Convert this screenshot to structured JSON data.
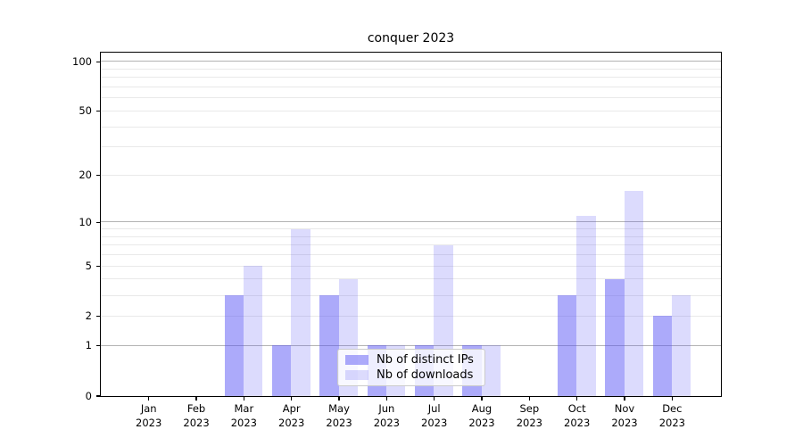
{
  "title": "conquer 2023",
  "chart_data": {
    "type": "bar",
    "title": "conquer 2023",
    "scale": "log10(value+1)",
    "grid": true,
    "categories": [
      {
        "month": "Jan",
        "year": "2023"
      },
      {
        "month": "Feb",
        "year": "2023"
      },
      {
        "month": "Mar",
        "year": "2023"
      },
      {
        "month": "Apr",
        "year": "2023"
      },
      {
        "month": "May",
        "year": "2023"
      },
      {
        "month": "Jun",
        "year": "2023"
      },
      {
        "month": "Jul",
        "year": "2023"
      },
      {
        "month": "Aug",
        "year": "2023"
      },
      {
        "month": "Sep",
        "year": "2023"
      },
      {
        "month": "Oct",
        "year": "2023"
      },
      {
        "month": "Nov",
        "year": "2023"
      },
      {
        "month": "Dec",
        "year": "2023"
      }
    ],
    "series": [
      {
        "name": "Nb of distinct IPs",
        "values": [
          0,
          0,
          3,
          1,
          3,
          1,
          1,
          1,
          0,
          3,
          4,
          2
        ],
        "base_color": "#5a55f5",
        "alpha": 0.5,
        "rendered_color": "#acaaf9"
      },
      {
        "name": "Nb of downloads",
        "values": [
          0,
          0,
          5,
          9,
          4,
          1,
          7,
          1,
          0,
          11,
          16,
          3
        ],
        "base_color": "#5a55f5",
        "alpha": 0.21,
        "rendered_color": "#dcdaf9"
      }
    ],
    "y_ticks": [
      100,
      50,
      20,
      10,
      5,
      2,
      1,
      0
    ],
    "major_gridlines": [
      1,
      10,
      100
    ],
    "minor_gridlines": [
      2,
      3,
      4,
      5,
      6,
      7,
      8,
      9,
      20,
      30,
      40,
      50,
      60,
      70,
      80,
      90
    ],
    "ylim": [
      0,
      114
    ],
    "legend": {
      "position": "lower center",
      "items": [
        "Nb of distinct IPs",
        "Nb of downloads"
      ]
    }
  },
  "colors": {
    "bar_distinct_ips": "#acaaf9",
    "bar_downloads": "#dcdaf9",
    "major_grid": "#b3b3b3",
    "minor_grid": "#e9e9e9",
    "axis": "#000000",
    "text": "#000000",
    "legend_border": "#cbcbcb",
    "legend_background": "#ffffff"
  }
}
